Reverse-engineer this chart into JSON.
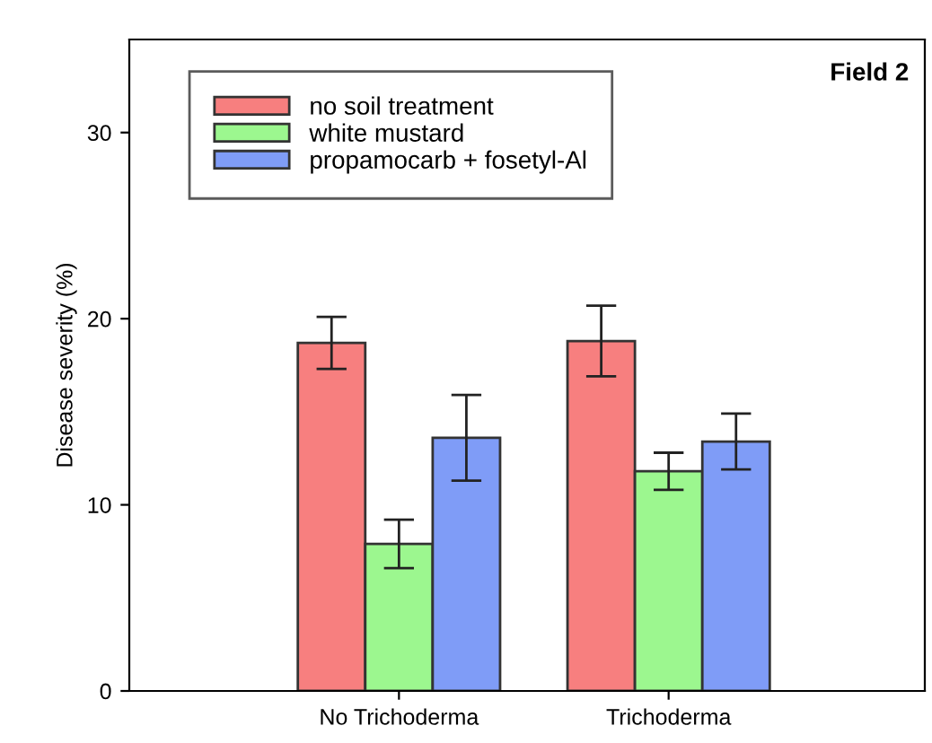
{
  "chart_data": {
    "type": "bar",
    "title": "Field 2",
    "ylabel": "Disease severity (%)",
    "categories": [
      "No Trichoderma",
      "Trichoderma"
    ],
    "series": [
      {
        "name": "no soil treatment",
        "color": "#f77f7f",
        "values": [
          18.7,
          18.8
        ],
        "errors": [
          1.4,
          1.9
        ]
      },
      {
        "name": "white mustard",
        "color": "#9cf78f",
        "values": [
          7.9,
          11.8
        ],
        "errors": [
          1.3,
          1.0
        ]
      },
      {
        "name": "propamocarb + fosetyl-Al",
        "color": "#7f9cf7",
        "values": [
          13.6,
          13.4
        ],
        "errors": [
          2.3,
          1.5
        ]
      }
    ],
    "ylim": [
      0,
      35
    ],
    "yticks": [
      0,
      10,
      20,
      30
    ],
    "grid": false,
    "legend": "top left"
  }
}
